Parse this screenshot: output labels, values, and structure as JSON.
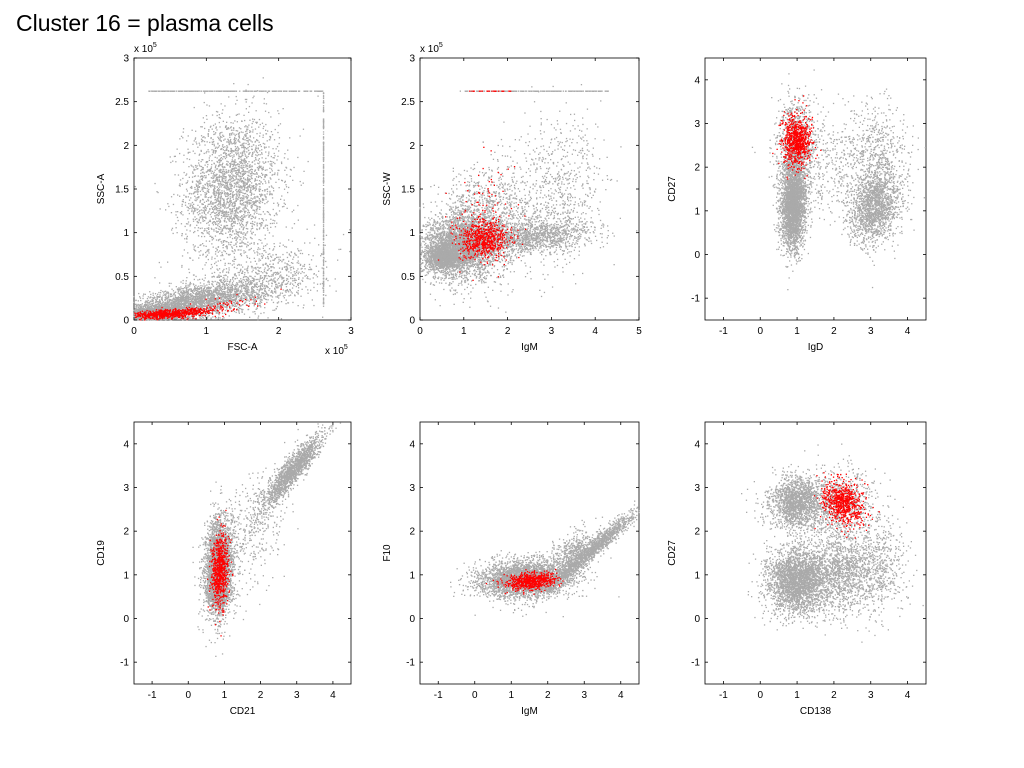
{
  "title": "Cluster 16 = plasma cells",
  "colors": {
    "background_cells": "#aaaaaa",
    "cluster_cells": "#ff0000",
    "axes": "#000000"
  },
  "chart_data": [
    {
      "type": "scatter",
      "xlabel": "FSC-A",
      "ylabel": "SSC-A",
      "xlim": [
        0,
        3
      ],
      "ylim": [
        0,
        3
      ],
      "xticks": [
        0,
        1,
        2,
        3
      ],
      "yticks": [
        0,
        0.5,
        1,
        1.5,
        2,
        2.5,
        3
      ],
      "x_exponent": "x 10",
      "y_exponent": "x 10",
      "exponent_power": "5",
      "series": [
        {
          "color": "#aaaaaa",
          "clouds": [
            {
              "x": 1.35,
              "y": 1.5,
              "sx": 0.33,
              "sy": 0.42,
              "r": 0.1,
              "n": 2600
            },
            {
              "x": 0.8,
              "y": 0.2,
              "sx": 0.5,
              "sy": 0.12,
              "r": 0.6,
              "n": 2600
            },
            {
              "x": 0.35,
              "y": 0.08,
              "sx": 0.22,
              "sy": 0.05,
              "r": 0.3,
              "n": 1300
            },
            {
              "x": 1.85,
              "y": 0.45,
              "sx": 0.4,
              "sy": 0.2,
              "r": 0.4,
              "n": 700
            }
          ],
          "lines": [
            {
              "axis": "y",
              "value": 2.62,
              "from": 0.2,
              "to": 2.62,
              "n": 260
            },
            {
              "axis": "x",
              "value": 2.62,
              "from": 0.15,
              "to": 2.62,
              "n": 240
            }
          ]
        },
        {
          "color": "#ff0000",
          "clouds": [
            {
              "x": 0.5,
              "y": 0.07,
              "sx": 0.3,
              "sy": 0.03,
              "r": 0.5,
              "n": 700
            },
            {
              "x": 1.2,
              "y": 0.17,
              "sx": 0.3,
              "sy": 0.05,
              "r": 0.6,
              "n": 60
            }
          ],
          "lines": []
        }
      ]
    },
    {
      "type": "scatter",
      "xlabel": "IgM",
      "ylabel": "SSC-W",
      "xlim": [
        0,
        5
      ],
      "ylim": [
        0,
        3
      ],
      "xticks": [
        0,
        1,
        2,
        3,
        4,
        5
      ],
      "yticks": [
        0,
        0.5,
        1,
        1.5,
        2,
        2.5,
        3
      ],
      "y_exponent": "x 10",
      "exponent_power": "5",
      "series": [
        {
          "color": "#aaaaaa",
          "clouds": [
            {
              "x": 0.95,
              "y": 0.85,
              "sx": 0.45,
              "sy": 0.18,
              "r": 0.1,
              "n": 3000
            },
            {
              "x": 1.5,
              "y": 1.1,
              "sx": 0.6,
              "sy": 0.35,
              "r": 0.2,
              "n": 1300
            },
            {
              "x": 2.6,
              "y": 0.95,
              "sx": 0.7,
              "sy": 0.1,
              "r": 0.3,
              "n": 1200
            },
            {
              "x": 3.2,
              "y": 1.5,
              "sx": 0.5,
              "sy": 0.4,
              "r": 0.2,
              "n": 600
            },
            {
              "x": 0.55,
              "y": 0.72,
              "sx": 0.2,
              "sy": 0.07,
              "r": 0.0,
              "n": 1200
            }
          ],
          "lines": [
            {
              "axis": "y",
              "value": 2.62,
              "from": 0.9,
              "to": 4.3,
              "n": 200
            }
          ]
        },
        {
          "color": "#ff0000",
          "clouds": [
            {
              "x": 1.45,
              "y": 0.92,
              "sx": 0.28,
              "sy": 0.1,
              "r": 0.1,
              "n": 650
            },
            {
              "x": 1.5,
              "y": 1.2,
              "sx": 0.4,
              "sy": 0.3,
              "r": 0.2,
              "n": 120
            }
          ],
          "lines": [
            {
              "axis": "y",
              "value": 2.62,
              "from": 1.1,
              "to": 2.1,
              "n": 25
            }
          ]
        }
      ]
    },
    {
      "type": "scatter",
      "xlabel": "IgD",
      "ylabel": "CD27",
      "xlim": [
        -1.5,
        4.5
      ],
      "ylim": [
        -1.5,
        4.5
      ],
      "xticks": [
        -1,
        0,
        1,
        2,
        3,
        4
      ],
      "yticks": [
        -1,
        0,
        1,
        2,
        3,
        4
      ],
      "series": [
        {
          "color": "#aaaaaa",
          "clouds": [
            {
              "x": 0.9,
              "y": 1.15,
              "sx": 0.17,
              "sy": 0.5,
              "r": 0.1,
              "n": 3000
            },
            {
              "x": 1.0,
              "y": 2.5,
              "sx": 0.28,
              "sy": 0.55,
              "r": 0.0,
              "n": 900
            },
            {
              "x": 3.1,
              "y": 1.05,
              "sx": 0.35,
              "sy": 0.4,
              "r": 0.2,
              "n": 1500
            },
            {
              "x": 2.2,
              "y": 2.1,
              "sx": 0.8,
              "sy": 0.6,
              "r": 0.0,
              "n": 500
            },
            {
              "x": 3.2,
              "y": 2.2,
              "sx": 0.4,
              "sy": 0.6,
              "r": 0.0,
              "n": 500
            }
          ],
          "lines": []
        },
        {
          "color": "#ff0000",
          "clouds": [
            {
              "x": 1.0,
              "y": 2.6,
              "sx": 0.2,
              "sy": 0.28,
              "r": 0.0,
              "n": 750
            }
          ],
          "lines": []
        }
      ]
    },
    {
      "type": "scatter",
      "xlabel": "CD21",
      "ylabel": "CD19",
      "xlim": [
        -1.5,
        4.5
      ],
      "ylim": [
        -1.5,
        4.5
      ],
      "xticks": [
        -1,
        0,
        1,
        2,
        3,
        4
      ],
      "yticks": [
        -1,
        0,
        1,
        2,
        3,
        4
      ],
      "series": [
        {
          "color": "#aaaaaa",
          "clouds": [
            {
              "x": 0.85,
              "y": 1.2,
              "sx": 0.2,
              "sy": 0.55,
              "r": 0.1,
              "n": 2800
            },
            {
              "x": 0.85,
              "y": 0.55,
              "sx": 0.15,
              "sy": 0.15,
              "r": 0.0,
              "n": 500
            },
            {
              "x": 2.9,
              "y": 3.4,
              "sx": 0.4,
              "sy": 0.4,
              "r": 0.9,
              "n": 1500
            },
            {
              "x": 2.0,
              "y": 2.5,
              "sx": 0.4,
              "sy": 0.5,
              "r": 0.5,
              "n": 250
            },
            {
              "x": 1.6,
              "y": 1.6,
              "sx": 0.5,
              "sy": 0.6,
              "r": 0.3,
              "n": 200
            }
          ],
          "lines": []
        },
        {
          "color": "#ff0000",
          "clouds": [
            {
              "x": 0.88,
              "y": 1.1,
              "sx": 0.12,
              "sy": 0.42,
              "r": 0.1,
              "n": 700
            }
          ],
          "lines": []
        }
      ]
    },
    {
      "type": "scatter",
      "xlabel": "IgM",
      "ylabel": "F10",
      "xlim": [
        -1.5,
        4.5
      ],
      "ylim": [
        -1.5,
        4.5
      ],
      "xticks": [
        -1,
        0,
        1,
        2,
        3,
        4
      ],
      "yticks": [
        -1,
        0,
        1,
        2,
        3,
        4
      ],
      "series": [
        {
          "color": "#aaaaaa",
          "clouds": [
            {
              "x": 1.35,
              "y": 0.9,
              "sx": 0.65,
              "sy": 0.22,
              "r": 0.1,
              "n": 3200
            },
            {
              "x": 3.2,
              "y": 1.55,
              "sx": 0.6,
              "sy": 0.45,
              "r": 0.97,
              "n": 1500
            },
            {
              "x": 2.7,
              "y": 1.55,
              "sx": 0.35,
              "sy": 0.25,
              "r": 0.6,
              "n": 400
            }
          ],
          "lines": []
        },
        {
          "color": "#ff0000",
          "clouds": [
            {
              "x": 1.55,
              "y": 0.85,
              "sx": 0.35,
              "sy": 0.1,
              "r": 0.2,
              "n": 650
            }
          ],
          "lines": []
        }
      ]
    },
    {
      "type": "scatter",
      "xlabel": "CD138",
      "ylabel": "CD27",
      "xlim": [
        -1.5,
        4.5
      ],
      "ylim": [
        -1.5,
        4.5
      ],
      "xticks": [
        -1,
        0,
        1,
        2,
        3,
        4
      ],
      "yticks": [
        -1,
        0,
        1,
        2,
        3,
        4
      ],
      "series": [
        {
          "color": "#aaaaaa",
          "clouds": [
            {
              "x": 1.0,
              "y": 0.85,
              "sx": 0.4,
              "sy": 0.38,
              "r": 0.0,
              "n": 2600
            },
            {
              "x": 1.0,
              "y": 2.65,
              "sx": 0.38,
              "sy": 0.3,
              "r": 0.0,
              "n": 1600
            },
            {
              "x": 2.2,
              "y": 1.05,
              "sx": 0.6,
              "sy": 0.45,
              "r": 0.0,
              "n": 1500
            },
            {
              "x": 2.1,
              "y": 2.6,
              "sx": 0.55,
              "sy": 0.4,
              "r": 0.0,
              "n": 800
            },
            {
              "x": 3.2,
              "y": 1.2,
              "sx": 0.4,
              "sy": 0.6,
              "r": 0.0,
              "n": 400
            }
          ],
          "lines": []
        },
        {
          "color": "#ff0000",
          "clouds": [
            {
              "x": 2.25,
              "y": 2.65,
              "sx": 0.28,
              "sy": 0.25,
              "r": -0.2,
              "n": 700
            }
          ],
          "lines": []
        }
      ]
    }
  ]
}
